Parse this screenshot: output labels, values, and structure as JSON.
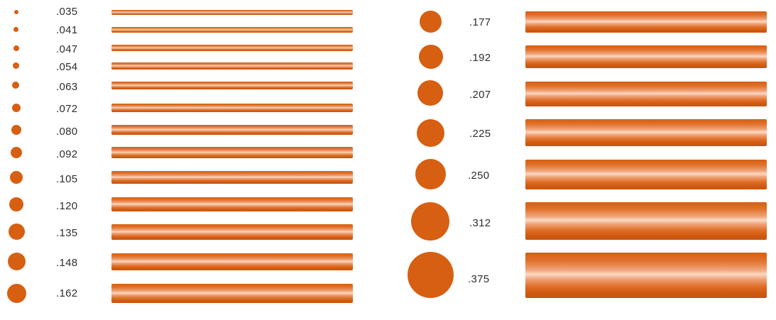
{
  "accent_color": "#d65f12",
  "left_sizes": [
    {
      "label": ".035"
    },
    {
      "label": ".041"
    },
    {
      "label": ".047"
    },
    {
      "label": ".054"
    },
    {
      "label": ".063"
    },
    {
      "label": ".072"
    },
    {
      "label": ".080"
    },
    {
      "label": ".092"
    },
    {
      "label": ".105"
    },
    {
      "label": ".120"
    },
    {
      "label": ".135"
    },
    {
      "label": ".148"
    },
    {
      "label": ".162"
    }
  ],
  "right_sizes": [
    {
      "label": ".177"
    },
    {
      "label": ".192"
    },
    {
      "label": ".207"
    },
    {
      "label": ".225"
    },
    {
      "label": ".250"
    },
    {
      "label": ".312"
    },
    {
      "label": ".375"
    }
  ]
}
